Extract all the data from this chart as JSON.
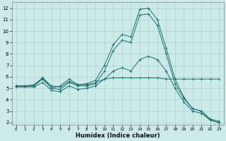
{
  "xlabel": "Humidex (Indice chaleur)",
  "background_color": "#cceae7",
  "grid_color": "#aad4d0",
  "line_color": "#1a7070",
  "xlim": [
    -0.5,
    23.5
  ],
  "ylim": [
    1.8,
    12.5
  ],
  "yticks": [
    2,
    3,
    4,
    5,
    6,
    7,
    8,
    9,
    10,
    11,
    12
  ],
  "xticks": [
    0,
    1,
    2,
    3,
    4,
    5,
    6,
    7,
    8,
    9,
    10,
    11,
    12,
    13,
    14,
    15,
    16,
    17,
    18,
    19,
    20,
    21,
    22,
    23
  ],
  "series": [
    {
      "x": [
        0,
        1,
        2,
        3,
        4,
        5,
        6,
        7,
        8,
        9,
        10,
        11,
        12,
        13,
        14,
        15,
        16,
        17,
        18,
        19,
        20,
        21,
        22,
        23
      ],
      "y": [
        5.2,
        5.2,
        5.2,
        5.9,
        5.0,
        5.2,
        5.8,
        5.3,
        5.4,
        5.7,
        7.0,
        8.8,
        9.7,
        9.5,
        11.9,
        12.0,
        11.0,
        8.5,
        5.8,
        4.2,
        3.2,
        3.0,
        2.2,
        2.0
      ]
    },
    {
      "x": [
        0,
        1,
        2,
        3,
        4,
        5,
        6,
        7,
        8,
        9,
        10,
        11,
        12,
        13,
        14,
        15,
        16,
        17,
        18,
        19,
        20,
        21,
        22,
        23
      ],
      "y": [
        5.2,
        5.2,
        5.3,
        5.9,
        5.2,
        5.1,
        5.6,
        5.3,
        5.3,
        5.5,
        5.8,
        5.9,
        5.9,
        5.9,
        5.9,
        5.9,
        5.9,
        5.8,
        5.8,
        5.8,
        5.8,
        5.8,
        5.8,
        5.8
      ]
    },
    {
      "x": [
        0,
        1,
        2,
        3,
        4,
        5,
        6,
        7,
        8,
        9,
        10,
        11,
        12,
        13,
        14,
        15,
        16,
        17,
        18,
        19,
        20,
        21,
        22,
        23
      ],
      "y": [
        5.2,
        5.2,
        5.2,
        5.8,
        5.0,
        4.9,
        5.5,
        5.2,
        5.2,
        5.4,
        6.5,
        8.3,
        9.2,
        9.0,
        11.4,
        11.5,
        10.5,
        8.0,
        5.4,
        4.1,
        3.2,
        3.0,
        2.3,
        2.1
      ]
    },
    {
      "x": [
        0,
        1,
        2,
        3,
        4,
        5,
        6,
        7,
        8,
        9,
        10,
        11,
        12,
        13,
        14,
        15,
        16,
        17,
        18,
        19,
        20,
        21,
        22,
        23
      ],
      "y": [
        5.1,
        5.1,
        5.1,
        5.5,
        4.8,
        4.7,
        5.2,
        4.9,
        5.0,
        5.2,
        5.8,
        6.5,
        6.8,
        6.5,
        7.5,
        7.8,
        7.5,
        6.5,
        5.0,
        3.8,
        3.0,
        2.8,
        2.2,
        2.0
      ]
    }
  ]
}
